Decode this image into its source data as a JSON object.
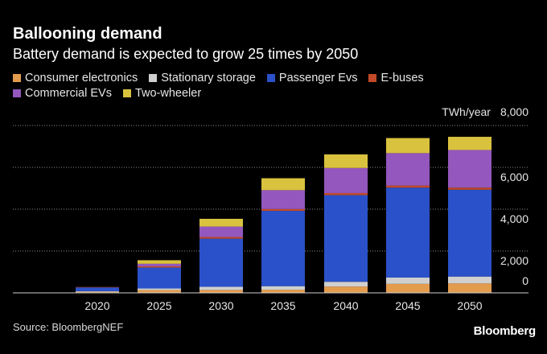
{
  "header": {
    "title": "Ballooning demand",
    "subtitle": "Battery demand is expected to grow 25 times by 2050"
  },
  "footer": {
    "source": "Source: BloombergNEF",
    "brand": "Bloomberg"
  },
  "chart_data": {
    "type": "bar",
    "stacked": true,
    "ylabel": "TWh/year",
    "ylim": [
      0,
      8000
    ],
    "yticks": [
      0,
      2000,
      4000,
      6000,
      8000
    ],
    "ytick_labels": [
      "0",
      "2,000",
      "4,000",
      "6,000",
      "8,000"
    ],
    "grid": true,
    "legend_position": "top",
    "categories": [
      "2020",
      "2025",
      "2030",
      "2035",
      "2040",
      "2045",
      "2050"
    ],
    "series": [
      {
        "name": "Consumer electronics",
        "color": "#e39c4d",
        "values": [
          50,
          130,
          140,
          150,
          300,
          430,
          450
        ]
      },
      {
        "name": "Stationary storage",
        "color": "#cfcfcf",
        "values": [
          30,
          80,
          150,
          170,
          230,
          300,
          330
        ]
      },
      {
        "name": "Passenger Evs",
        "color": "#2a51c9",
        "values": [
          180,
          1000,
          2300,
          3600,
          4140,
          4300,
          4150
        ]
      },
      {
        "name": "E-buses",
        "color": "#c24a28",
        "values": [
          20,
          60,
          80,
          90,
          100,
          100,
          100
        ]
      },
      {
        "name": "Commercial EVs",
        "color": "#9457bd",
        "values": [
          0,
          120,
          500,
          900,
          1200,
          1550,
          1800
        ]
      },
      {
        "name": "Two-wheeler",
        "color": "#d9c23e",
        "values": [
          0,
          170,
          370,
          570,
          650,
          720,
          630
        ]
      }
    ]
  }
}
